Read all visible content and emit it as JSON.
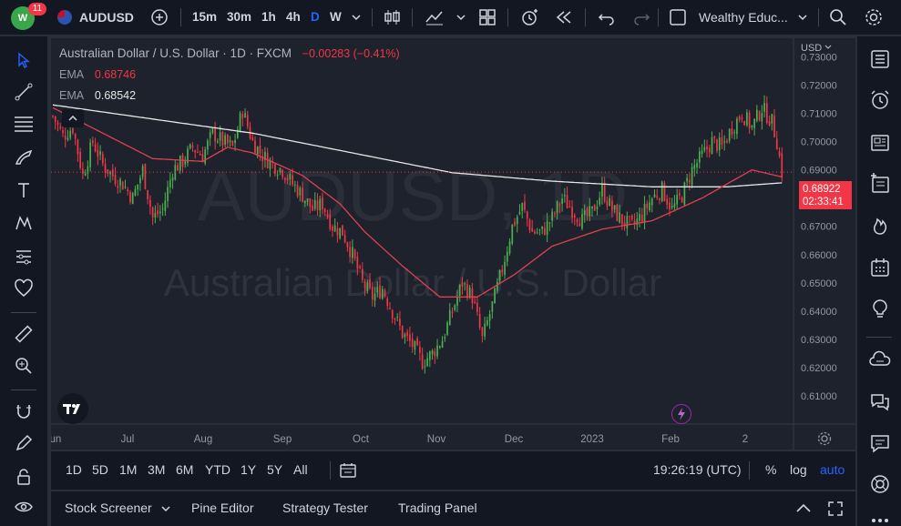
{
  "topbar": {
    "notification_count": "11",
    "symbol": "AUDUSD",
    "intervals": [
      "15m",
      "30m",
      "1h",
      "4h",
      "D",
      "W"
    ],
    "active_interval": "D",
    "layout_name": "Wealthy Educ..."
  },
  "legend": {
    "title": "Australian Dollar / U.S. Dollar · 1D · FXCM",
    "change": "−0.00283 (−0.41%)",
    "ema1_label": "EMA",
    "ema1_value": "0.68746",
    "ema2_label": "EMA",
    "ema2_value": "0.68542"
  },
  "watermark": {
    "symbol": "AUDUSD, 1D",
    "name": "Australian Dollar / U.S. Dollar"
  },
  "price_axis": {
    "currency_button": "USD",
    "current_price": "0.68922",
    "countdown": "02:33:41"
  },
  "time_axis": {
    "labels": [
      "Jun",
      "Jul",
      "Aug",
      "Sep",
      "Oct",
      "Nov",
      "Dec",
      "2023",
      "Feb",
      "2"
    ]
  },
  "rangebar": {
    "ranges": [
      "1D",
      "5D",
      "1M",
      "3M",
      "6M",
      "YTD",
      "1Y",
      "5Y",
      "All"
    ],
    "clock": "19:26:19 (UTC)",
    "percent": "%",
    "log": "log",
    "auto": "auto"
  },
  "panelbar": {
    "tabs": [
      "Stock Screener",
      "Pine Editor",
      "Strategy Tester",
      "Trading Panel"
    ]
  },
  "colors": {
    "up": "#26a69a",
    "up_candle": "#4caf50",
    "down": "#f23645",
    "ema_fast": "#e0404d",
    "ema_slow": "#e6e6e6",
    "accent": "#2962ff"
  },
  "chart_data": {
    "type": "candlestick",
    "symbol": "AUDUSD",
    "timeframe": "1D",
    "ylim": [
      0.6,
      0.735
    ],
    "yticks": [
      0.73,
      0.72,
      0.71,
      0.7,
      0.69,
      0.68,
      0.67,
      0.66,
      0.65,
      0.64,
      0.63,
      0.62,
      0.61
    ],
    "ytick_labels": [
      "0.73000",
      "0.72000",
      "0.71000",
      "0.70000",
      "0.69000",
      "0.68000",
      "0.67000",
      "0.66000",
      "0.65000",
      "0.64000",
      "0.63000",
      "0.62000",
      "0.61000"
    ],
    "close_path": [
      [
        0,
        0.709
      ],
      [
        4,
        0.702
      ],
      [
        8,
        0.705
      ],
      [
        12,
        0.688
      ],
      [
        16,
        0.7
      ],
      [
        20,
        0.692
      ],
      [
        24,
        0.688
      ],
      [
        28,
        0.685
      ],
      [
        32,
        0.68
      ],
      [
        36,
        0.69
      ],
      [
        40,
        0.673
      ],
      [
        44,
        0.676
      ],
      [
        48,
        0.69
      ],
      [
        52,
        0.693
      ],
      [
        56,
        0.698
      ],
      [
        60,
        0.695
      ],
      [
        64,
        0.703
      ],
      [
        68,
        0.7
      ],
      [
        72,
        0.698
      ],
      [
        76,
        0.711
      ],
      [
        80,
        0.7
      ],
      [
        84,
        0.695
      ],
      [
        88,
        0.692
      ],
      [
        92,
        0.69
      ],
      [
        96,
        0.685
      ],
      [
        100,
        0.681
      ],
      [
        104,
        0.676
      ],
      [
        108,
        0.678
      ],
      [
        112,
        0.67
      ],
      [
        116,
        0.668
      ],
      [
        120,
        0.66
      ],
      [
        124,
        0.65
      ],
      [
        128,
        0.645
      ],
      [
        132,
        0.648
      ],
      [
        136,
        0.64
      ],
      [
        140,
        0.632
      ],
      [
        144,
        0.628
      ],
      [
        148,
        0.622
      ],
      [
        152,
        0.625
      ],
      [
        156,
        0.63
      ],
      [
        160,
        0.64
      ],
      [
        164,
        0.65
      ],
      [
        168,
        0.645
      ],
      [
        172,
        0.63
      ],
      [
        176,
        0.642
      ],
      [
        180,
        0.655
      ],
      [
        184,
        0.67
      ],
      [
        188,
        0.677
      ],
      [
        192,
        0.668
      ],
      [
        196,
        0.668
      ],
      [
        200,
        0.673
      ],
      [
        204,
        0.68
      ],
      [
        208,
        0.676
      ],
      [
        212,
        0.672
      ],
      [
        216,
        0.675
      ],
      [
        220,
        0.683
      ],
      [
        224,
        0.676
      ],
      [
        228,
        0.672
      ],
      [
        232,
        0.67
      ],
      [
        236,
        0.674
      ],
      [
        240,
        0.68
      ],
      [
        244,
        0.683
      ],
      [
        248,
        0.676
      ],
      [
        252,
        0.681
      ],
      [
        256,
        0.69
      ],
      [
        260,
        0.695
      ],
      [
        264,
        0.7
      ],
      [
        268,
        0.698
      ],
      [
        272,
        0.705
      ],
      [
        276,
        0.71
      ],
      [
        280,
        0.705
      ],
      [
        284,
        0.712
      ],
      [
        288,
        0.707
      ],
      [
        290,
        0.7
      ],
      [
        292,
        0.689
      ]
    ],
    "ema_fast": [
      [
        0,
        0.712
      ],
      [
        20,
        0.703
      ],
      [
        40,
        0.694
      ],
      [
        60,
        0.693
      ],
      [
        70,
        0.698
      ],
      [
        80,
        0.696
      ],
      [
        100,
        0.688
      ],
      [
        115,
        0.678
      ],
      [
        125,
        0.668
      ],
      [
        140,
        0.656
      ],
      [
        155,
        0.645
      ],
      [
        170,
        0.645
      ],
      [
        185,
        0.653
      ],
      [
        200,
        0.663
      ],
      [
        220,
        0.669
      ],
      [
        240,
        0.672
      ],
      [
        260,
        0.68
      ],
      [
        280,
        0.69
      ],
      [
        292,
        0.6875
      ]
    ],
    "ema_slow": [
      [
        0,
        0.713
      ],
      [
        40,
        0.708
      ],
      [
        80,
        0.703
      ],
      [
        120,
        0.696
      ],
      [
        160,
        0.689
      ],
      [
        200,
        0.686
      ],
      [
        240,
        0.684
      ],
      [
        270,
        0.684
      ],
      [
        292,
        0.6854
      ]
    ],
    "current_price": 0.68922
  }
}
